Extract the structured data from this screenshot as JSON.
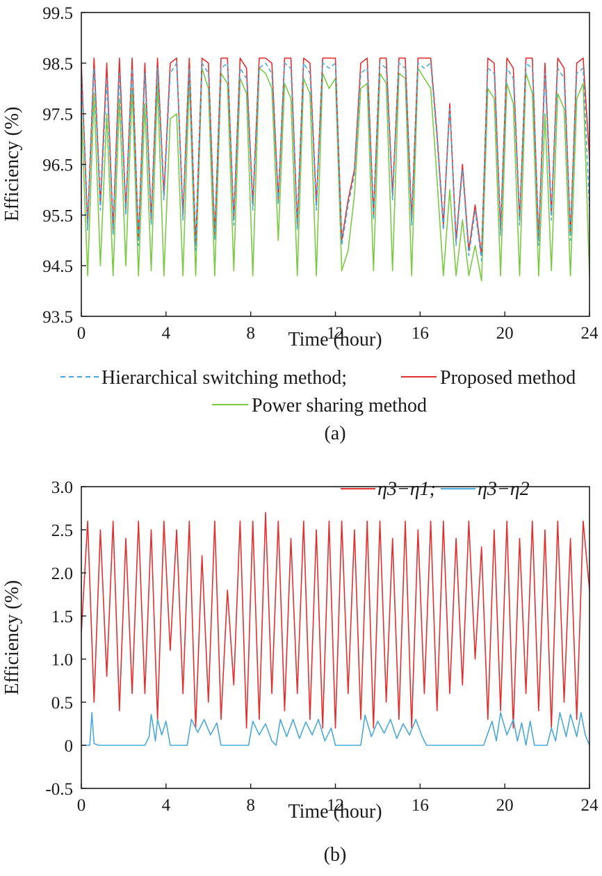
{
  "chart_data": [
    {
      "type": "line",
      "caption": "(a)",
      "xlabel": "Time (hour)",
      "ylabel": "Efficiency (%)",
      "xlim": [
        0,
        24
      ],
      "ylim": [
        93.5,
        99.5
      ],
      "xticks": [
        "0",
        "4",
        "8",
        "12",
        "16",
        "20",
        "24"
      ],
      "yticks": [
        "93.5",
        "94.5",
        "95.5",
        "96.5",
        "97.5",
        "98.5",
        "99.5"
      ],
      "xtick_values": [
        0,
        4,
        8,
        12,
        16,
        20,
        24
      ],
      "ytick_values": [
        93.5,
        94.5,
        95.5,
        96.5,
        97.5,
        98.5,
        99.5
      ],
      "legend": {
        "placement": "below",
        "entries": [
          "Hierarchical switching method;",
          "Proposed method",
          "Power sharing method"
        ]
      },
      "series": [
        {
          "name": "Hierarchical switching method",
          "color": "#4aa8d8",
          "style": "dashed",
          "x": [
            0,
            0.3,
            0.6,
            0.9,
            1.2,
            1.5,
            1.8,
            2.1,
            2.4,
            2.7,
            3.0,
            3.3,
            3.6,
            3.9,
            4.2,
            4.5,
            4.8,
            5.1,
            5.4,
            5.7,
            6.0,
            6.3,
            6.6,
            6.9,
            7.2,
            7.5,
            7.8,
            8.1,
            8.4,
            8.7,
            9.0,
            9.3,
            9.6,
            9.9,
            10.2,
            10.5,
            10.8,
            11.1,
            11.4,
            11.7,
            12.0,
            12.3,
            12.6,
            12.9,
            13.2,
            13.5,
            13.8,
            14.1,
            14.4,
            14.7,
            15.0,
            15.3,
            15.6,
            15.9,
            16.2,
            16.5,
            16.8,
            17.1,
            17.4,
            17.7,
            18.0,
            18.3,
            18.6,
            18.9,
            19.2,
            19.5,
            19.8,
            20.1,
            20.4,
            20.7,
            21.0,
            21.3,
            21.6,
            21.9,
            22.2,
            22.5,
            22.8,
            23.1,
            23.4,
            23.7,
            24.0
          ],
          "values": [
            98.3,
            95.2,
            98.4,
            95.6,
            98.2,
            95.1,
            98.3,
            95.5,
            98.4,
            94.9,
            98.3,
            95.3,
            98.4,
            95.8,
            98.3,
            98.5,
            95.4,
            98.4,
            94.8,
            98.5,
            98.3,
            95.0,
            98.4,
            98.5,
            95.3,
            98.4,
            98.2,
            95.6,
            98.4,
            98.5,
            98.3,
            95.7,
            98.5,
            98.4,
            95.2,
            98.5,
            98.3,
            95.6,
            98.5,
            98.4,
            98.5,
            94.9,
            95.7,
            96.3,
            98.3,
            98.4,
            95.4,
            98.5,
            98.4,
            95.8,
            98.5,
            98.4,
            95.3,
            98.5,
            98.4,
            98.5,
            97.0,
            95.2,
            97.6,
            94.9,
            96.4,
            94.7,
            95.6,
            94.6,
            98.4,
            98.3,
            95.1,
            98.4,
            98.2,
            95.3,
            98.5,
            98.4,
            94.9,
            98.3,
            95.4,
            98.4,
            98.2,
            95.0,
            98.3,
            98.4,
            95.6
          ]
        },
        {
          "name": "Proposed method",
          "color": "#e03030",
          "style": "solid",
          "x": [
            0,
            0.3,
            0.6,
            0.9,
            1.2,
            1.5,
            1.8,
            2.1,
            2.4,
            2.7,
            3.0,
            3.3,
            3.6,
            3.9,
            4.2,
            4.5,
            4.8,
            5.1,
            5.4,
            5.7,
            6.0,
            6.3,
            6.6,
            6.9,
            7.2,
            7.5,
            7.8,
            8.1,
            8.4,
            8.7,
            9.0,
            9.3,
            9.6,
            9.9,
            10.2,
            10.5,
            10.8,
            11.1,
            11.4,
            11.7,
            12.0,
            12.3,
            12.6,
            12.9,
            13.2,
            13.5,
            13.8,
            14.1,
            14.4,
            14.7,
            15.0,
            15.3,
            15.6,
            15.9,
            16.2,
            16.5,
            16.8,
            17.1,
            17.4,
            17.7,
            18.0,
            18.3,
            18.6,
            18.9,
            19.2,
            19.5,
            19.8,
            20.1,
            20.4,
            20.7,
            21.0,
            21.3,
            21.6,
            21.9,
            22.2,
            22.5,
            22.8,
            23.1,
            23.4,
            23.7,
            24.0
          ],
          "values": [
            98.5,
            95.3,
            98.6,
            95.7,
            98.5,
            95.2,
            98.6,
            95.6,
            98.6,
            95.0,
            98.5,
            95.4,
            98.6,
            95.9,
            98.5,
            98.6,
            95.5,
            98.6,
            94.9,
            98.6,
            98.5,
            95.1,
            98.6,
            98.6,
            95.4,
            98.6,
            98.4,
            95.7,
            98.6,
            98.6,
            98.5,
            95.8,
            98.6,
            98.6,
            95.3,
            98.6,
            98.5,
            95.7,
            98.6,
            98.6,
            98.6,
            95.0,
            95.8,
            96.4,
            98.5,
            98.6,
            95.5,
            98.6,
            98.6,
            95.9,
            98.6,
            98.6,
            95.4,
            98.6,
            98.6,
            98.6,
            97.1,
            95.3,
            97.7,
            95.0,
            96.5,
            94.8,
            95.7,
            94.7,
            98.6,
            98.5,
            95.2,
            98.6,
            98.4,
            95.4,
            98.6,
            98.6,
            95.0,
            98.5,
            95.5,
            98.6,
            98.4,
            95.1,
            98.5,
            98.6,
            96.6
          ]
        },
        {
          "name": "Power sharing method",
          "color": "#7ac943",
          "style": "solid",
          "x": [
            0,
            0.3,
            0.6,
            0.9,
            1.2,
            1.5,
            1.8,
            2.1,
            2.4,
            2.7,
            3.0,
            3.3,
            3.6,
            3.9,
            4.2,
            4.5,
            4.8,
            5.1,
            5.4,
            5.7,
            6.0,
            6.3,
            6.6,
            6.9,
            7.2,
            7.5,
            7.8,
            8.1,
            8.4,
            8.7,
            9.0,
            9.3,
            9.6,
            9.9,
            10.2,
            10.5,
            10.8,
            11.1,
            11.4,
            11.7,
            12.0,
            12.3,
            12.6,
            12.9,
            13.2,
            13.5,
            13.8,
            14.1,
            14.4,
            14.7,
            15.0,
            15.3,
            15.6,
            15.9,
            16.2,
            16.5,
            16.8,
            17.1,
            17.4,
            17.7,
            18.0,
            18.3,
            18.6,
            18.9,
            19.2,
            19.5,
            19.8,
            20.1,
            20.4,
            20.7,
            21.0,
            21.3,
            21.6,
            21.9,
            22.2,
            22.5,
            22.8,
            23.1,
            23.4,
            23.7,
            24.0
          ],
          "values": [
            97.6,
            94.3,
            97.9,
            94.5,
            97.5,
            94.3,
            97.8,
            94.5,
            98.0,
            94.3,
            97.7,
            94.4,
            98.1,
            94.3,
            97.4,
            97.5,
            94.3,
            98.2,
            94.3,
            98.4,
            98.0,
            94.3,
            98.3,
            98.1,
            94.4,
            98.2,
            97.9,
            94.3,
            98.4,
            98.3,
            98.0,
            95.0,
            98.1,
            97.8,
            94.3,
            98.2,
            97.9,
            94.3,
            98.3,
            98.0,
            98.2,
            94.4,
            94.8,
            95.9,
            98.0,
            98.1,
            94.4,
            98.3,
            98.1,
            94.4,
            98.3,
            98.2,
            94.3,
            98.4,
            98.2,
            98.0,
            96.2,
            94.3,
            96.0,
            94.3,
            95.4,
            94.3,
            94.9,
            94.2,
            98.0,
            97.8,
            94.3,
            98.1,
            97.7,
            94.3,
            98.3,
            97.9,
            94.3,
            97.5,
            94.4,
            97.9,
            97.6,
            94.3,
            97.8,
            98.1,
            94.3
          ]
        }
      ]
    },
    {
      "type": "line",
      "caption": "(b)",
      "xlabel": "Time (hour)",
      "ylabel": "Efficiency (%)",
      "xlim": [
        0,
        24
      ],
      "ylim": [
        -0.5,
        3.0
      ],
      "xticks": [
        "0",
        "4",
        "8",
        "12",
        "16",
        "20",
        "24"
      ],
      "yticks": [
        "-0.5",
        "0",
        "0.5",
        "1.0",
        "1.5",
        "2.0",
        "2.5",
        "3.0"
      ],
      "xtick_values": [
        0,
        4,
        8,
        12,
        16,
        20,
        24
      ],
      "ytick_values": [
        -0.5,
        0,
        0.5,
        1.0,
        1.5,
        2.0,
        2.5,
        3.0
      ],
      "legend": {
        "placement": "top-right",
        "entries": [
          "η3−η1;",
          "η3−η2"
        ]
      },
      "series": [
        {
          "name": "η3−η1",
          "color": "#e03030",
          "style": "solid",
          "x": [
            0,
            0.3,
            0.6,
            0.9,
            1.2,
            1.5,
            1.8,
            2.1,
            2.4,
            2.7,
            3.0,
            3.3,
            3.6,
            3.9,
            4.2,
            4.5,
            4.8,
            5.1,
            5.4,
            5.7,
            6.0,
            6.3,
            6.6,
            6.9,
            7.2,
            7.5,
            7.8,
            8.1,
            8.4,
            8.7,
            9.0,
            9.3,
            9.6,
            9.9,
            10.2,
            10.5,
            10.8,
            11.1,
            11.4,
            11.7,
            12.0,
            12.3,
            12.6,
            12.9,
            13.2,
            13.5,
            13.8,
            14.1,
            14.4,
            14.7,
            15.0,
            15.3,
            15.6,
            15.9,
            16.2,
            16.5,
            16.8,
            17.1,
            17.4,
            17.7,
            18.0,
            18.3,
            18.6,
            18.9,
            19.2,
            19.5,
            19.8,
            20.1,
            20.4,
            20.7,
            21.0,
            21.3,
            21.6,
            21.9,
            22.2,
            22.5,
            22.8,
            23.1,
            23.4,
            23.7,
            24.0
          ],
          "values": [
            1.3,
            2.6,
            0.5,
            2.5,
            0.8,
            2.6,
            0.4,
            2.4,
            0.6,
            2.6,
            0.6,
            2.5,
            0.3,
            2.6,
            1.1,
            2.5,
            0.6,
            2.6,
            0.2,
            2.2,
            0.5,
            2.6,
            0.3,
            1.8,
            0.7,
            2.6,
            0.2,
            2.6,
            0.3,
            2.7,
            0.6,
            2.6,
            0.4,
            2.4,
            0.6,
            2.6,
            0.3,
            2.5,
            0.2,
            2.6,
            0.2,
            2.6,
            0.6,
            2.5,
            0.3,
            2.6,
            0.2,
            2.6,
            0.5,
            2.4,
            0.3,
            2.6,
            0.2,
            2.5,
            0.6,
            2.6,
            0.4,
            2.6,
            0.6,
            2.4,
            0.7,
            2.6,
            1.0,
            2.3,
            0.3,
            2.5,
            0.4,
            2.6,
            0.2,
            2.4,
            0.6,
            2.6,
            0.4,
            2.5,
            0.2,
            2.6,
            0.5,
            2.4,
            0.3,
            2.6,
            1.8
          ]
        },
        {
          "name": "η3−η2",
          "color": "#4aa8d8",
          "style": "solid",
          "x": [
            0,
            0.2,
            0.4,
            0.5,
            0.6,
            0.8,
            3.0,
            3.2,
            3.3,
            3.5,
            3.6,
            3.8,
            4.0,
            4.2,
            5.0,
            5.2,
            5.5,
            5.8,
            6.1,
            6.4,
            6.6,
            7.9,
            8.1,
            8.4,
            8.7,
            9.0,
            9.2,
            9.4,
            9.7,
            10.0,
            10.3,
            10.6,
            10.9,
            11.2,
            11.5,
            11.8,
            12.0,
            13.2,
            13.4,
            13.7,
            14.0,
            14.3,
            14.6,
            14.9,
            15.2,
            15.5,
            15.8,
            16.1,
            16.3,
            19.0,
            19.4,
            19.6,
            19.8,
            20.1,
            20.4,
            20.6,
            20.8,
            21.0,
            21.2,
            21.4,
            22.0,
            22.2,
            22.4,
            22.6,
            22.9,
            23.1,
            23.4,
            23.6,
            23.8,
            24.0
          ],
          "values": [
            0,
            0,
            0,
            0.38,
            0.02,
            0,
            0,
            0.1,
            0.36,
            0.05,
            0.3,
            0.12,
            0.28,
            0,
            0,
            0.3,
            0.15,
            0.3,
            0.12,
            0.26,
            0,
            0,
            0.28,
            0.12,
            0.25,
            0.05,
            0,
            0.3,
            0.1,
            0.3,
            0.08,
            0.27,
            0.12,
            0.3,
            0.05,
            0.2,
            0,
            0,
            0.35,
            0.1,
            0.28,
            0.14,
            0.3,
            0.08,
            0.25,
            0.12,
            0.3,
            0.1,
            0,
            0,
            0.28,
            0.05,
            0.38,
            0.12,
            0.3,
            0.05,
            0.26,
            0,
            0.28,
            0,
            0,
            0.2,
            0.05,
            0.38,
            0.1,
            0.36,
            0.1,
            0.38,
            0.12,
            0
          ]
        }
      ]
    }
  ]
}
